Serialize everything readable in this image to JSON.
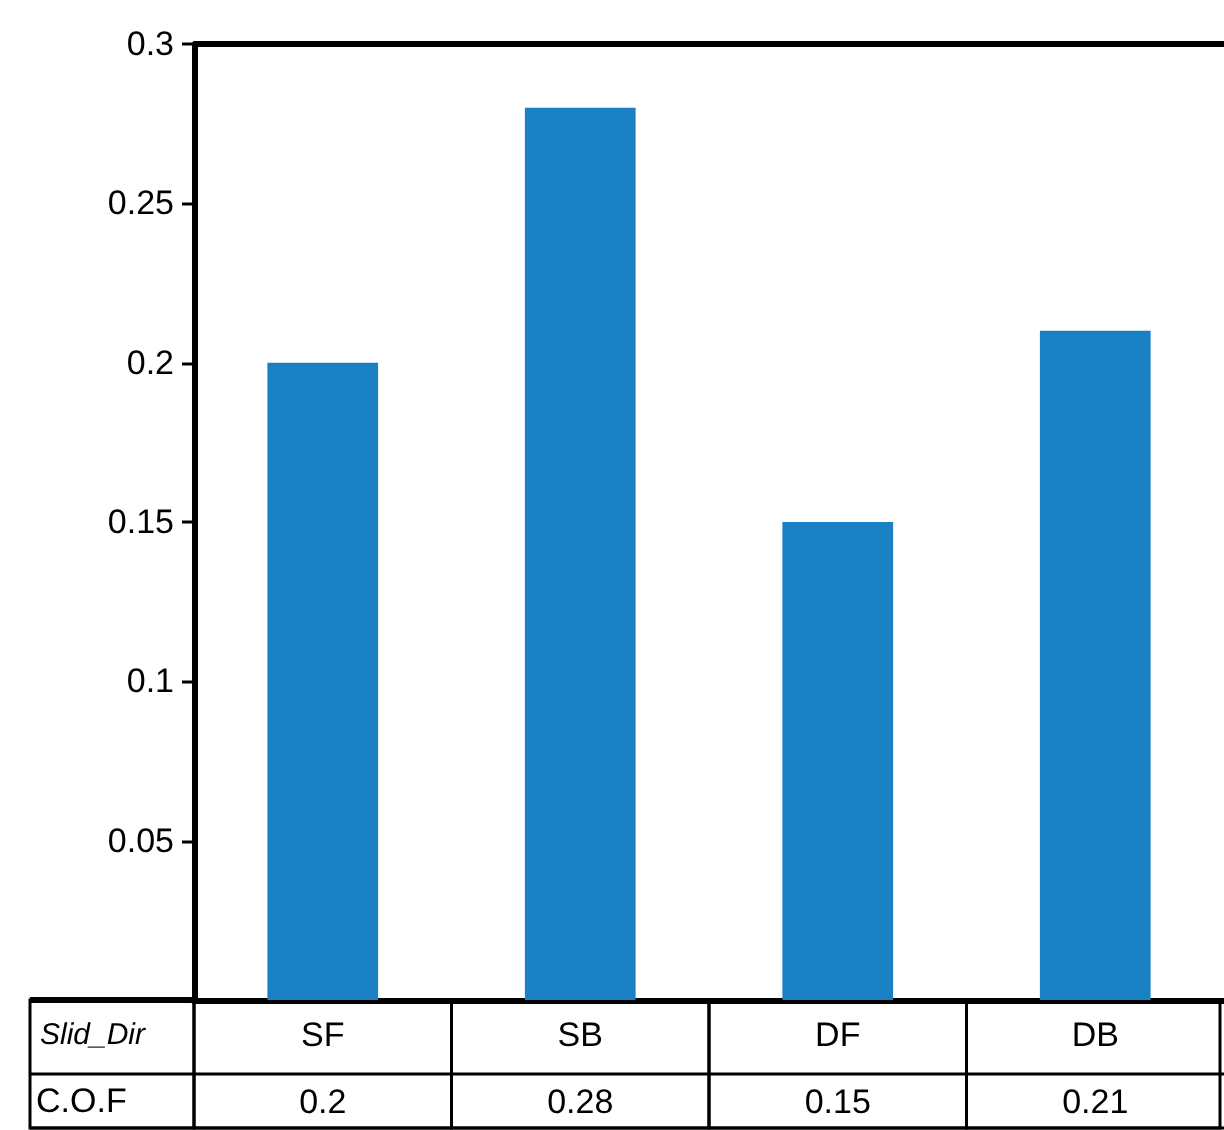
{
  "chart_data": {
    "type": "bar",
    "xlabel": "Slid_Dir",
    "ylabel": "C.O.F",
    "categories": [
      "SF",
      "SB",
      "DF",
      "DB"
    ],
    "values": [
      0.2,
      0.28,
      0.15,
      0.21
    ],
    "color": "#1a80c4",
    "ylim": [
      0,
      0.3
    ],
    "yticks": [
      {
        "value": 0,
        "label": null
      },
      0.05,
      0.1,
      0.15,
      0.2,
      0.25,
      0.3
    ],
    "data_labels": true,
    "grid": false
  }
}
